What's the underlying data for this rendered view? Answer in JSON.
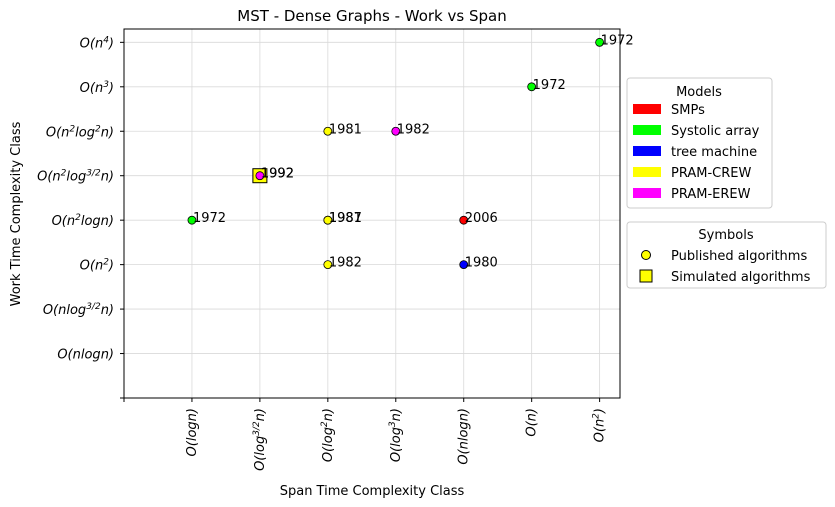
{
  "chart_data": {
    "type": "scatter",
    "title": "MST - Dense Graphs - Work vs Span",
    "xlabel": "Span Time Complexity Class",
    "ylabel": "Work Time Complexity Class",
    "x_ticks": [
      "",
      "O(logn)",
      "O(log^{3/2}n)",
      "O(log^2n)",
      "O(log^3n)",
      "O(nlogn)",
      "O(n)",
      "O(n^2)"
    ],
    "y_ticks": [
      "",
      "O(nlogn)",
      "O(nlog^{3/2}n)",
      "O(n^2)",
      "O(n^2logn)",
      "O(n^2log^{3/2}n)",
      "O(n^2log^2n)",
      "O(n^3)",
      "O(n^4)"
    ],
    "grid": true,
    "models": [
      {
        "name": "SMPs",
        "color": "#ff0000"
      },
      {
        "name": "Systolic array",
        "color": "#00ff00"
      },
      {
        "name": "tree machine",
        "color": "#0000ff"
      },
      {
        "name": "PRAM-CREW",
        "color": "#ffff00"
      },
      {
        "name": "PRAM-EREW",
        "color": "#ff00ff"
      }
    ],
    "models_legend_title": "Models",
    "symbols_legend_title": "Symbols",
    "symbols": [
      {
        "name": "Published algorithms",
        "marker": "circle"
      },
      {
        "name": "Simulated algorithms",
        "marker": "square"
      }
    ],
    "points": [
      {
        "x": 7,
        "y": 8,
        "label": "1972",
        "model": "Systolic array",
        "marker": "circle"
      },
      {
        "x": 6,
        "y": 7,
        "label": "1972",
        "model": "Systolic array",
        "marker": "circle"
      },
      {
        "x": 3,
        "y": 6,
        "label": "1981",
        "model": "PRAM-CREW",
        "marker": "circle"
      },
      {
        "x": 4,
        "y": 6,
        "label": "1982",
        "model": "PRAM-EREW",
        "marker": "circle"
      },
      {
        "x": 2,
        "y": 5,
        "label": "1992",
        "model": "PRAM-CREW",
        "marker": "square"
      },
      {
        "x": 2,
        "y": 5,
        "label": "1992",
        "model": "PRAM-EREW",
        "marker": "circle"
      },
      {
        "x": 1,
        "y": 4,
        "label": "1972",
        "model": "Systolic array",
        "marker": "circle"
      },
      {
        "x": 3,
        "y": 4,
        "label": "1981",
        "model": "PRAM-CREW",
        "marker": "circle"
      },
      {
        "x": 3,
        "y": 4,
        "label": "1987",
        "model": "PRAM-CREW",
        "marker": "circle"
      },
      {
        "x": 5,
        "y": 4,
        "label": "2006",
        "model": "SMPs",
        "marker": "circle"
      },
      {
        "x": 3,
        "y": 3,
        "label": "1982",
        "model": "PRAM-CREW",
        "marker": "circle"
      },
      {
        "x": 5,
        "y": 3,
        "label": "1980",
        "model": "tree machine",
        "marker": "circle"
      }
    ],
    "xlim": [
      0,
      7.3
    ],
    "ylim": [
      0,
      8.3
    ]
  }
}
